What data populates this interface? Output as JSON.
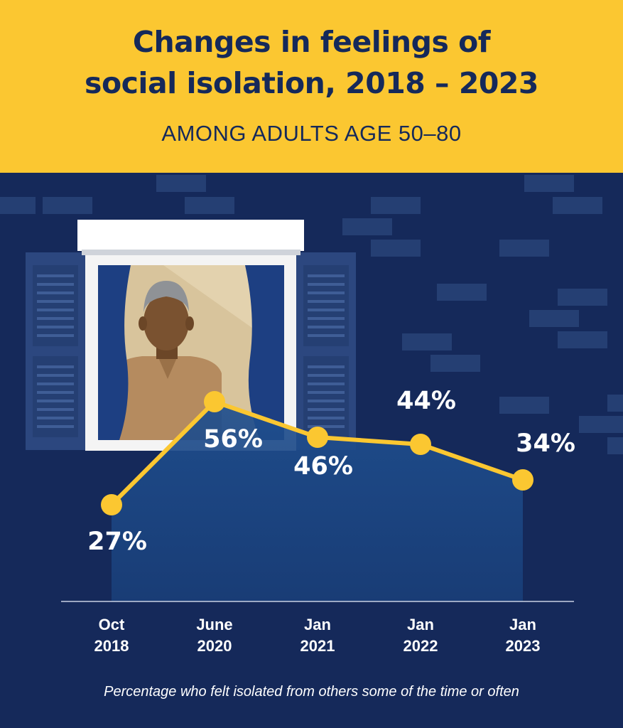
{
  "header": {
    "title_line1": "Changes in feelings of",
    "title_line2": "social isolation, 2018 – 2023",
    "subtitle": "AMONG ADULTS AGE 50–80"
  },
  "footnote": "Percentage who felt isolated from others some of the time or often",
  "colors": {
    "header_bg": "#fbc731",
    "background": "#15295a",
    "line": "#fbc731",
    "area": "#1f4f8f",
    "text_dark": "#15295a",
    "text_light": "#ffffff"
  },
  "chart_data": {
    "type": "line",
    "categories": [
      [
        "Oct",
        "2018"
      ],
      [
        "June",
        "2020"
      ],
      [
        "Jan",
        "2021"
      ],
      [
        "Jan",
        "2022"
      ],
      [
        "Jan",
        "2023"
      ]
    ],
    "values": [
      27,
      56,
      46,
      44,
      34
    ],
    "value_labels": [
      "27%",
      "56%",
      "46%",
      "44%",
      "34%"
    ],
    "title": "Changes in feelings of social isolation, 2018 – 2023",
    "subtitle": "AMONG ADULTS AGE 50–80",
    "xlabel": "",
    "ylabel": "",
    "grid": false,
    "legend": "none"
  }
}
